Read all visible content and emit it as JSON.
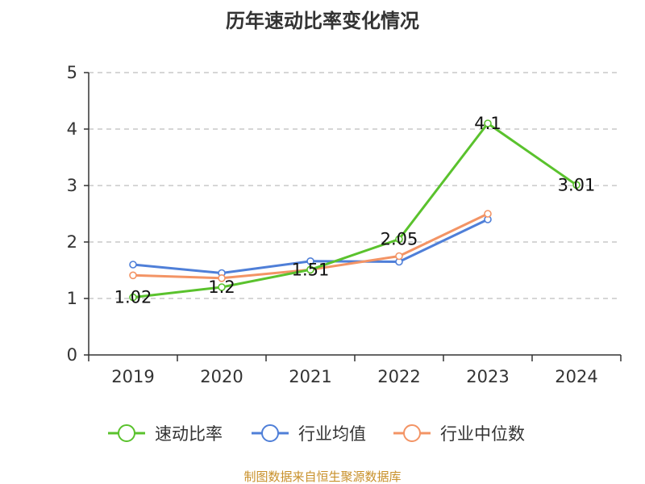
{
  "chart_data": {
    "type": "line",
    "title": "历年速动比率变化情况",
    "categories": [
      "2019",
      "2020",
      "2021",
      "2022",
      "2023",
      "2024"
    ],
    "ylim": [
      0,
      5
    ],
    "yticks": [
      "0",
      "1",
      "2",
      "3",
      "4",
      "5"
    ],
    "grid": true,
    "legend_position": "bottom-center",
    "series": [
      {
        "name": "速动比率",
        "color": "#5ac22d",
        "values": [
          1.02,
          1.2,
          1.51,
          2.05,
          4.1,
          3.01
        ],
        "labels": [
          "1.02",
          "1.2",
          "1.51",
          "2.05",
          "4.1",
          "3.01"
        ]
      },
      {
        "name": "行业均值",
        "color": "#4f7fd8",
        "values": [
          1.6,
          1.45,
          1.66,
          1.65,
          2.4,
          null
        ]
      },
      {
        "name": "行业中位数",
        "color": "#f39465",
        "values": [
          1.41,
          1.36,
          1.51,
          1.75,
          2.5,
          null
        ]
      }
    ],
    "source": "制图数据来自恒生聚源数据库"
  }
}
